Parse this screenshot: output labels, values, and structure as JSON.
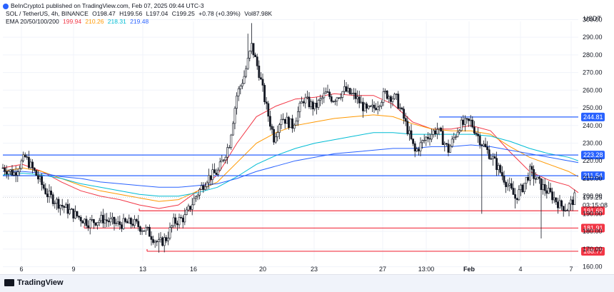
{
  "credit": "BeInCrypto1 published on TradingView.com, Feb 07, 2025 09:44 UTC-3",
  "header": {
    "line1": {
      "symbol": "SOL / TetherUS, 4h, BINANCE",
      "o": "O198.47",
      "h": "H199.56",
      "l": "L197.04",
      "c": "C199.25",
      "chg": "+0.78 (+0.39%)",
      "vol": "Vol87.98K"
    },
    "line2": {
      "label": "EMA 20/50/100/200",
      "ema20": "199.94",
      "ema50": "210.26",
      "ema100": "218.31",
      "ema200": "219.48"
    }
  },
  "currency": "USDT",
  "footer": {
    "logo_text": "TradingView"
  },
  "colors": {
    "ema20": "#f23645",
    "ema50": "#ff9800",
    "ema100": "#00bcd4",
    "ema200": "#2962ff",
    "resistance": "#2962ff",
    "support": "#f23645",
    "candle": "#131722"
  },
  "chart_data": {
    "type": "candlestick",
    "timeframe": "4h",
    "ylim": [
      155,
      305
    ],
    "y_ticks": [
      160,
      170,
      180,
      190,
      200,
      210,
      220,
      230,
      240,
      250,
      260,
      270,
      280,
      290,
      300
    ],
    "x_tick_labels": [
      "6",
      "9",
      "13",
      "16",
      "20",
      "23",
      "27",
      "13:00",
      "Feb",
      "4",
      "7"
    ],
    "current_price": {
      "value": "199.25",
      "countdown": "03:15:08"
    },
    "resistance_levels": [
      {
        "value": 244.81,
        "label": "244.81"
      },
      {
        "value": 223.28,
        "label": "223.28"
      },
      {
        "value": 211.54,
        "label": "211.54"
      }
    ],
    "support_levels": [
      {
        "value": 191.69,
        "label": "191.69"
      },
      {
        "value": 181.91,
        "label": "181.91"
      },
      {
        "value": 168.77,
        "label": "168.77"
      }
    ],
    "ema_series": [
      {
        "name": "EMA 20",
        "color": "#f23645",
        "values": [
          [
            0,
            216
          ],
          [
            10,
            218
          ],
          [
            20,
            214
          ],
          [
            30,
            208
          ],
          [
            40,
            203
          ],
          [
            50,
            200
          ],
          [
            60,
            198
          ],
          [
            70,
            195
          ],
          [
            80,
            193
          ],
          [
            90,
            195
          ],
          [
            100,
            203
          ],
          [
            110,
            212
          ],
          [
            120,
            230
          ],
          [
            130,
            245
          ],
          [
            140,
            251
          ],
          [
            150,
            255
          ],
          [
            160,
            256
          ],
          [
            170,
            258
          ],
          [
            180,
            257
          ],
          [
            190,
            257
          ],
          [
            200,
            252
          ],
          [
            210,
            242
          ],
          [
            220,
            238
          ],
          [
            230,
            238
          ],
          [
            240,
            240
          ],
          [
            250,
            237
          ],
          [
            260,
            225
          ],
          [
            270,
            214
          ],
          [
            280,
            209
          ],
          [
            290,
            206
          ],
          [
            295,
            202
          ]
        ]
      },
      {
        "name": "EMA 50",
        "color": "#ff9800",
        "values": [
          [
            0,
            214
          ],
          [
            10,
            216
          ],
          [
            20,
            214
          ],
          [
            30,
            210
          ],
          [
            40,
            206
          ],
          [
            50,
            203
          ],
          [
            60,
            201
          ],
          [
            70,
            199
          ],
          [
            80,
            197
          ],
          [
            90,
            198
          ],
          [
            100,
            203
          ],
          [
            110,
            208
          ],
          [
            120,
            219
          ],
          [
            130,
            230
          ],
          [
            140,
            236
          ],
          [
            150,
            240
          ],
          [
            160,
            242
          ],
          [
            170,
            244
          ],
          [
            180,
            245
          ],
          [
            190,
            246
          ],
          [
            200,
            245
          ],
          [
            210,
            241
          ],
          [
            220,
            238
          ],
          [
            230,
            237
          ],
          [
            240,
            237
          ],
          [
            250,
            235
          ],
          [
            260,
            228
          ],
          [
            270,
            222
          ],
          [
            280,
            218
          ],
          [
            290,
            214
          ],
          [
            295,
            211
          ]
        ]
      },
      {
        "name": "EMA 100",
        "color": "#00bcd4",
        "values": [
          [
            0,
            212
          ],
          [
            10,
            213
          ],
          [
            20,
            212
          ],
          [
            30,
            210
          ],
          [
            40,
            207
          ],
          [
            50,
            205
          ],
          [
            60,
            203
          ],
          [
            70,
            201
          ],
          [
            80,
            200
          ],
          [
            90,
            200
          ],
          [
            100,
            202
          ],
          [
            110,
            205
          ],
          [
            120,
            211
          ],
          [
            130,
            218
          ],
          [
            140,
            223
          ],
          [
            150,
            227
          ],
          [
            160,
            230
          ],
          [
            170,
            232
          ],
          [
            180,
            234
          ],
          [
            190,
            236
          ],
          [
            200,
            236
          ],
          [
            210,
            235
          ],
          [
            220,
            235
          ],
          [
            230,
            235
          ],
          [
            240,
            235
          ],
          [
            250,
            234
          ],
          [
            260,
            231
          ],
          [
            270,
            227
          ],
          [
            280,
            224
          ],
          [
            290,
            222
          ],
          [
            295,
            220
          ]
        ]
      },
      {
        "name": "EMA 200",
        "color": "#2962ff",
        "values": [
          [
            0,
            214
          ],
          [
            10,
            214
          ],
          [
            20,
            213
          ],
          [
            30,
            211
          ],
          [
            40,
            210
          ],
          [
            50,
            208
          ],
          [
            60,
            207
          ],
          [
            70,
            206
          ],
          [
            80,
            205
          ],
          [
            90,
            205
          ],
          [
            100,
            206
          ],
          [
            110,
            207
          ],
          [
            120,
            210
          ],
          [
            130,
            214
          ],
          [
            140,
            217
          ],
          [
            150,
            220
          ],
          [
            160,
            222
          ],
          [
            170,
            224
          ],
          [
            180,
            225
          ],
          [
            190,
            226
          ],
          [
            200,
            227
          ],
          [
            210,
            227
          ],
          [
            220,
            228
          ],
          [
            230,
            228
          ],
          [
            240,
            229
          ],
          [
            250,
            228
          ],
          [
            260,
            226
          ],
          [
            270,
            224
          ],
          [
            280,
            222
          ],
          [
            290,
            220
          ],
          [
            295,
            219
          ]
        ]
      }
    ],
    "candles_anchor_closes": [
      [
        0,
        216
      ],
      [
        6,
        213
      ],
      [
        12,
        222
      ],
      [
        18,
        212
      ],
      [
        24,
        201
      ],
      [
        30,
        196
      ],
      [
        38,
        190
      ],
      [
        46,
        185
      ],
      [
        54,
        187
      ],
      [
        62,
        184
      ],
      [
        70,
        185
      ],
      [
        78,
        180
      ],
      [
        84,
        173
      ],
      [
        88,
        176
      ],
      [
        92,
        185
      ],
      [
        98,
        188
      ],
      [
        104,
        200
      ],
      [
        110,
        210
      ],
      [
        116,
        214
      ],
      [
        122,
        230
      ],
      [
        126,
        257
      ],
      [
        130,
        268
      ],
      [
        134,
        285
      ],
      [
        138,
        270
      ],
      [
        142,
        250
      ],
      [
        146,
        233
      ],
      [
        150,
        245
      ],
      [
        156,
        240
      ],
      [
        162,
        255
      ],
      [
        168,
        250
      ],
      [
        174,
        258
      ],
      [
        178,
        255
      ],
      [
        184,
        260
      ],
      [
        190,
        256
      ],
      [
        196,
        248
      ],
      [
        200,
        250
      ],
      [
        206,
        258
      ],
      [
        212,
        255
      ],
      [
        216,
        244
      ],
      [
        222,
        225
      ],
      [
        228,
        233
      ],
      [
        234,
        238
      ],
      [
        240,
        226
      ],
      [
        246,
        240
      ],
      [
        252,
        242
      ],
      [
        258,
        230
      ],
      [
        264,
        221
      ],
      [
        270,
        210
      ],
      [
        276,
        199
      ],
      [
        280,
        205
      ],
      [
        284,
        214
      ],
      [
        290,
        206
      ],
      [
        296,
        200
      ],
      [
        300,
        195
      ],
      [
        304,
        193
      ],
      [
        308,
        199
      ]
    ]
  }
}
